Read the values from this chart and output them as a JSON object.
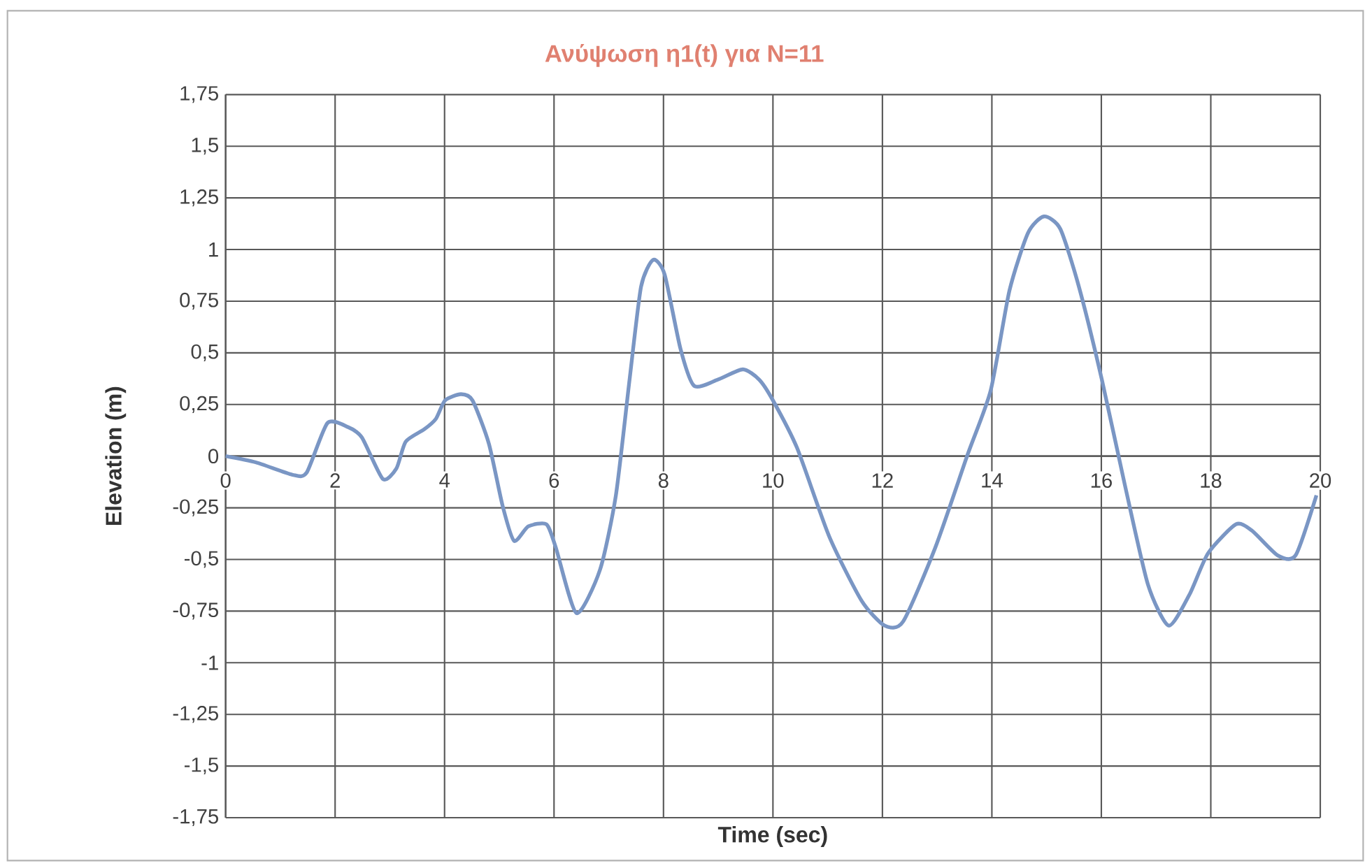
{
  "chart_data": {
    "type": "line",
    "title": "Ανύψωση η1(t) για N=11",
    "xlabel": "Time (sec)",
    "ylabel": "Elevation (m)",
    "xlim": [
      0,
      20
    ],
    "xticks": [
      0,
      2,
      4,
      6,
      8,
      10,
      12,
      14,
      16,
      18,
      20
    ],
    "ylim": [
      -1.75,
      1.75
    ],
    "yticks": [
      {
        "value": -1.75,
        "label": "-1,75"
      },
      {
        "value": -1.5,
        "label": "-1,5"
      },
      {
        "value": -1.25,
        "label": "-1,25"
      },
      {
        "value": -1,
        "label": "-1"
      },
      {
        "value": -0.75,
        "label": "-0,75"
      },
      {
        "value": -0.5,
        "label": "-0,5"
      },
      {
        "value": -0.25,
        "label": "-0,25"
      },
      {
        "value": 0,
        "label": "0"
      },
      {
        "value": 0.25,
        "label": "0,25"
      },
      {
        "value": 0.5,
        "label": "0,5"
      },
      {
        "value": 0.75,
        "label": "0,75"
      },
      {
        "value": 1,
        "label": "1"
      },
      {
        "value": 1.25,
        "label": "1,25"
      },
      {
        "value": 1.5,
        "label": "1,5"
      },
      {
        "value": 1.75,
        "label": "1,75"
      }
    ],
    "grid": true,
    "marker": "none",
    "line_style": "solid",
    "series": [
      {
        "color": "#7a96c4",
        "x": [
          0,
          0.55,
          1.22,
          1.48,
          1.86,
          2.24,
          2.49,
          2.87,
          3.12,
          3.29,
          3.63,
          3.84,
          4.01,
          4.3,
          4.51,
          4.81,
          5.06,
          5.27,
          5.53,
          5.86,
          6.03,
          6.41,
          6.84,
          7.13,
          7.38,
          7.59,
          7.81,
          8.02,
          8.31,
          8.56,
          8.99,
          9.45,
          9.75,
          10.0,
          10.44,
          11.03,
          11.62,
          12.04,
          12.38,
          12.97,
          13.56,
          13.98,
          14.32,
          14.66,
          14.95,
          15.25,
          15.59,
          16.01,
          16.43,
          16.85,
          17.23,
          17.61,
          17.95,
          18.46,
          18.75,
          19.22,
          19.55,
          19.93
        ],
        "values": [
          0,
          -0.03,
          -0.09,
          -0.08,
          0.16,
          0.14,
          0.09,
          -0.11,
          -0.06,
          0.07,
          0.13,
          0.18,
          0.27,
          0.3,
          0.27,
          0.06,
          -0.24,
          -0.41,
          -0.34,
          -0.33,
          -0.44,
          -0.76,
          -0.55,
          -0.19,
          0.37,
          0.82,
          0.95,
          0.88,
          0.52,
          0.34,
          0.37,
          0.42,
          0.37,
          0.27,
          0.04,
          -0.39,
          -0.7,
          -0.82,
          -0.8,
          -0.44,
          0.01,
          0.32,
          0.8,
          1.08,
          1.16,
          1.1,
          0.82,
          0.37,
          -0.14,
          -0.62,
          -0.82,
          -0.67,
          -0.47,
          -0.33,
          -0.36,
          -0.48,
          -0.48,
          -0.19
        ]
      }
    ]
  }
}
